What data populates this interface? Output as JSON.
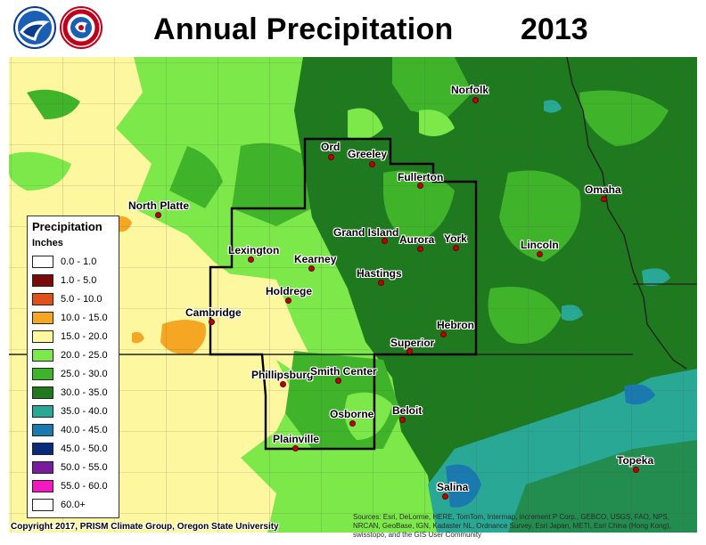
{
  "title": "Annual Precipitation",
  "year": "2013",
  "logos": {
    "left": "noaa-logo",
    "right": "nws-logo"
  },
  "legend": {
    "title": "Precipitation",
    "units": "Inches",
    "items": [
      {
        "label": "0.0 - 1.0",
        "color": "#ffffff"
      },
      {
        "label": "1.0 - 5.0",
        "color": "#7a0a0a"
      },
      {
        "label": "5.0 - 10.0",
        "color": "#e0501a"
      },
      {
        "label": "10.0 - 15.0",
        "color": "#f5a623"
      },
      {
        "label": "15.0 - 20.0",
        "color": "#fdf7a0"
      },
      {
        "label": "20.0 - 25.0",
        "color": "#7ce84a"
      },
      {
        "label": "25.0 - 30.0",
        "color": "#3fb42a"
      },
      {
        "label": "30.0 - 35.0",
        "color": "#1f7a1f"
      },
      {
        "label": "35.0 - 40.0",
        "color": "#2aa896"
      },
      {
        "label": "40.0 - 45.0",
        "color": "#1a7ab0"
      },
      {
        "label": "45.0 - 50.0",
        "color": "#0a2a7a"
      },
      {
        "label": "50.0 - 55.0",
        "color": "#7a1aa0"
      },
      {
        "label": "55.0 - 60.0",
        "color": "#f01ac0"
      },
      {
        "label": "60.0+",
        "color": "#ffffff"
      }
    ]
  },
  "cities": [
    {
      "name": "Norfolk"
    },
    {
      "name": "Ord"
    },
    {
      "name": "Greeley"
    },
    {
      "name": "Fullerton"
    },
    {
      "name": "North Platte"
    },
    {
      "name": "Omaha"
    },
    {
      "name": "Grand Island"
    },
    {
      "name": "Aurora"
    },
    {
      "name": "York"
    },
    {
      "name": "Lexington"
    },
    {
      "name": "Kearney"
    },
    {
      "name": "Lincoln"
    },
    {
      "name": "Hastings"
    },
    {
      "name": "Holdrege"
    },
    {
      "name": "Cambridge"
    },
    {
      "name": "Hebron"
    },
    {
      "name": "Superior"
    },
    {
      "name": "Phillipsburg"
    },
    {
      "name": "Smith Center"
    },
    {
      "name": "Beloit"
    },
    {
      "name": "Osborne"
    },
    {
      "name": "Plainville"
    },
    {
      "name": "Topeka"
    },
    {
      "name": "Salina"
    }
  ],
  "copyright": "Copyright 2017, PRISM Climate Group, Oregon State University",
  "sources": "Sources: Esri, DeLorme, HERE, TomTom, Intermap, increment P Corp., GEBCO, USGS, FAO, NPS, NRCAN, GeoBase, IGN, Kadaster NL, Ordnance Survey, Esri Japan, METI, Esri China (Hong Kong), swisstopo, and the GIS User Community"
}
